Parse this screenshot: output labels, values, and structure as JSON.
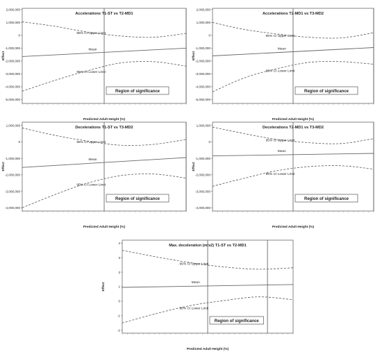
{
  "chart_data": [
    {
      "type": "line",
      "title": "Accelerations T1-ST vs T2-MD1",
      "xlabel": "Predicted Adult Height (%)",
      "ylabel": "Effect",
      "yticks": [
        2000000,
        1000000,
        0,
        -1000000,
        -2000000,
        -3000000,
        -4000000,
        -5000000
      ],
      "ytick_labels": [
        "2,000,000",
        "1,000,000",
        "0",
        "-1,000,000",
        "-2,000,000",
        "-3,000,000",
        "-4,000,000",
        "-5,000,000"
      ],
      "ylim": [
        -5300000,
        2100000
      ],
      "xlim": [
        0,
        1
      ],
      "region_bounds": [
        0.5,
        1
      ],
      "grid": false,
      "region_label": "Region of significance",
      "series": [
        {
          "name": "95% CI Upper Limit",
          "style": "dashed",
          "x": [
            0,
            0.2,
            0.4,
            0.6,
            0.8,
            1
          ],
          "y": [
            1050000,
            700000,
            250000,
            -50000,
            -150000,
            150000
          ]
        },
        {
          "name": "Mean",
          "style": "solid",
          "x": [
            0,
            1
          ],
          "y": [
            -1650000,
            -1000000
          ]
        },
        {
          "name": "95% CI Lower Limit",
          "style": "dashed",
          "x": [
            0,
            0.2,
            0.4,
            0.6,
            0.8,
            1
          ],
          "y": [
            -4350000,
            -3500000,
            -2750000,
            -2150000,
            -2050000,
            -2400000
          ]
        }
      ]
    },
    {
      "type": "line",
      "title": "Accelerations T2-MD1 vs T3-MD2",
      "xlabel": "Predicted Adult Height (%)",
      "ylabel": "Effect",
      "yticks": [
        2000000,
        1000000,
        0,
        -1000000,
        -2000000,
        -3000000,
        -4000000,
        -5000000
      ],
      "ytick_labels": [
        "2,000,000",
        "1,000,000",
        "0",
        "-1,000,000",
        "-2,000,000",
        "-3,000,000",
        "-4,000,000",
        "-5,000,000"
      ],
      "ylim": [
        -5300000,
        2100000
      ],
      "xlim": [
        0,
        1
      ],
      "region_bounds": [
        0.5,
        1
      ],
      "grid": false,
      "region_label": "Region of significance",
      "series": [
        {
          "name": "95% CI Upper Limit",
          "style": "dashed",
          "x": [
            0,
            0.2,
            0.4,
            0.6,
            0.8,
            1
          ],
          "y": [
            1000000,
            450000,
            100000,
            -150000,
            -200000,
            200000
          ]
        },
        {
          "name": "Mean",
          "style": "solid",
          "x": [
            0,
            1
          ],
          "y": [
            -1600000,
            -950000
          ]
        },
        {
          "name": "95% CI Lower Limit",
          "style": "dashed",
          "x": [
            0,
            0.2,
            0.4,
            0.6,
            0.8,
            1
          ],
          "y": [
            -4400000,
            -3300000,
            -2600000,
            -2100000,
            -2050000,
            -2250000
          ]
        }
      ]
    },
    {
      "type": "line",
      "title": "Decelerations T1-ST vs T3-MD2",
      "xlabel": "Predicted Adult Height (%)",
      "ylabel": "Effect",
      "yticks": [
        1000000,
        0,
        -1000000,
        -2000000,
        -3000000,
        -4000000
      ],
      "ytick_labels": [
        "1,000,000",
        "0",
        "-1,000,000",
        "-2,000,000",
        "-3,000,000",
        "-4,000,000"
      ],
      "ylim": [
        -4200000,
        1200000
      ],
      "xlim": [
        0,
        1
      ],
      "region_bounds": [
        0.5,
        1
      ],
      "grid": false,
      "region_label": "Region of significance",
      "series": [
        {
          "name": "95% CI Upper Limit",
          "style": "dashed",
          "x": [
            0,
            0.2,
            0.4,
            0.6,
            0.8,
            1
          ],
          "y": [
            850000,
            400000,
            50000,
            -200000,
            -150000,
            150000
          ]
        },
        {
          "name": "Mean",
          "style": "solid",
          "x": [
            0,
            1
          ],
          "y": [
            -1550000,
            -950000
          ]
        },
        {
          "name": "95% CI Lower Limit",
          "style": "dashed",
          "x": [
            0,
            0.2,
            0.4,
            0.6,
            0.8,
            1
          ],
          "y": [
            -4000000,
            -3200000,
            -2500000,
            -2050000,
            -1950000,
            -2200000
          ]
        }
      ]
    },
    {
      "type": "line",
      "title": "Decelerations T2-MD1 vs T3-MD2",
      "xlabel": "Predicted Adult Height (%)",
      "ylabel": "Effect",
      "yticks": [
        1000000,
        0,
        -1000000,
        -2000000,
        -3000000,
        -4000000
      ],
      "ytick_labels": [
        "1,000,000",
        "0",
        "-1,000,000",
        "-2,000,000",
        "-3,000,000",
        "-4,000,000"
      ],
      "ylim": [
        -4200000,
        1200000
      ],
      "xlim": [
        0,
        1
      ],
      "region_bounds": [
        0.5,
        1
      ],
      "grid": false,
      "region_label": "Region of significance",
      "series": [
        {
          "name": "95% CI Upper Limit",
          "style": "dashed",
          "x": [
            0,
            0.2,
            0.4,
            0.6,
            0.8,
            1
          ],
          "y": [
            900000,
            500000,
            150000,
            -50000,
            -100000,
            200000
          ]
        },
        {
          "name": "Mean",
          "style": "solid",
          "x": [
            0,
            1
          ],
          "y": [
            -850000,
            -700000
          ]
        },
        {
          "name": "95% CI Lower Limit",
          "style": "dashed",
          "x": [
            0,
            0.2,
            0.4,
            0.6,
            0.8,
            1
          ],
          "y": [
            -2700000,
            -2200000,
            -1750000,
            -1500000,
            -1450000,
            -1650000
          ]
        }
      ]
    },
    {
      "type": "line",
      "title": "Max. deceleration (m/s2) T1-ST vs T2-MD1",
      "xlabel": "Predicted Adult Height (%)",
      "ylabel": "Effect",
      "yticks": [
        4,
        3,
        2,
        1,
        0,
        -1,
        -2
      ],
      "ytick_labels": [
        "4",
        "3",
        "2",
        "1",
        "0",
        "-1",
        "-2"
      ],
      "ylim": [
        -2.2,
        4.2
      ],
      "xlim": [
        0,
        1
      ],
      "region_bounds": [
        0.5,
        0.85
      ],
      "grid": false,
      "region_label": "Region of significance",
      "series": [
        {
          "name": "95% CI Upper Limit",
          "style": "dashed",
          "x": [
            0,
            0.2,
            0.4,
            0.6,
            0.8,
            1
          ],
          "y": [
            3.5,
            3.05,
            2.65,
            2.35,
            2.2,
            2.3
          ]
        },
        {
          "name": "Mean",
          "style": "solid",
          "x": [
            0,
            1
          ],
          "y": [
            0.95,
            1.15
          ]
        },
        {
          "name": "95% CI Lower Limit",
          "style": "dashed",
          "x": [
            0,
            0.2,
            0.4,
            0.6,
            0.8,
            1
          ],
          "y": [
            -1.5,
            -0.85,
            -0.3,
            0.05,
            0.3,
            0.1
          ]
        }
      ]
    }
  ]
}
